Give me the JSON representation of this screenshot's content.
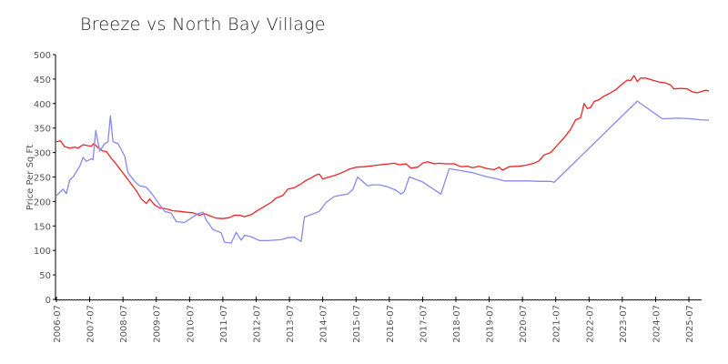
{
  "chart_data": {
    "type": "line",
    "title": "Breeze vs North Bay Village",
    "xlabel": "",
    "ylabel": "Price Per Sq Ft",
    "ylim": [
      0,
      500
    ],
    "yticks": [
      0,
      50,
      100,
      150,
      200,
      250,
      300,
      350,
      400,
      450,
      500
    ],
    "xticks": [
      "2006-07",
      "2007-07",
      "2008-07",
      "2009-07",
      "2010-07",
      "2011-07",
      "2012-07",
      "2013-07",
      "2014-07",
      "2015-07",
      "2016-07",
      "2017-07",
      "2018-07",
      "2019-07",
      "2020-07",
      "2021-07",
      "2022-07",
      "2023-07",
      "2024-07",
      "2025-07"
    ],
    "x_domain": [
      2006.5,
      2025.85
    ],
    "grid": false,
    "legend": null,
    "series": [
      {
        "name": "red-series",
        "color": "#ee2222",
        "points": [
          [
            2006.5,
            322
          ],
          [
            2006.62,
            324
          ],
          [
            2006.75,
            312
          ],
          [
            2006.9,
            309
          ],
          [
            2007.05,
            311
          ],
          [
            2007.15,
            309
          ],
          [
            2007.3,
            316
          ],
          [
            2007.45,
            314
          ],
          [
            2007.55,
            313
          ],
          [
            2007.62,
            318
          ],
          [
            2007.75,
            310
          ],
          [
            2007.9,
            303
          ],
          [
            2008.0,
            302
          ],
          [
            2008.15,
            288
          ],
          [
            2008.3,
            276
          ],
          [
            2008.5,
            258
          ],
          [
            2008.7,
            240
          ],
          [
            2008.9,
            222
          ],
          [
            2009.05,
            205
          ],
          [
            2009.2,
            196
          ],
          [
            2009.3,
            205
          ],
          [
            2009.45,
            193
          ],
          [
            2009.6,
            187
          ],
          [
            2009.8,
            185
          ],
          [
            2010.0,
            181
          ],
          [
            2010.2,
            180
          ],
          [
            2010.4,
            178
          ],
          [
            2010.6,
            177
          ],
          [
            2010.8,
            172
          ],
          [
            2010.95,
            175
          ],
          [
            2011.1,
            171
          ],
          [
            2011.3,
            166
          ],
          [
            2011.5,
            165
          ],
          [
            2011.7,
            167
          ],
          [
            2011.85,
            172
          ],
          [
            2012.0,
            172
          ],
          [
            2012.15,
            169
          ],
          [
            2012.35,
            173
          ],
          [
            2012.55,
            182
          ],
          [
            2012.75,
            190
          ],
          [
            2012.95,
            198
          ],
          [
            2013.1,
            207
          ],
          [
            2013.3,
            212
          ],
          [
            2013.45,
            225
          ],
          [
            2013.65,
            228
          ],
          [
            2013.85,
            236
          ],
          [
            2014.0,
            243
          ],
          [
            2014.15,
            248
          ],
          [
            2014.3,
            254
          ],
          [
            2014.4,
            256
          ],
          [
            2014.5,
            246
          ],
          [
            2014.65,
            249
          ],
          [
            2014.85,
            253
          ],
          [
            2015.05,
            258
          ],
          [
            2015.3,
            266
          ],
          [
            2015.5,
            270
          ],
          [
            2015.75,
            271
          ],
          [
            2016.0,
            273
          ],
          [
            2016.25,
            275
          ],
          [
            2016.5,
            277
          ],
          [
            2016.65,
            278
          ],
          [
            2016.8,
            275
          ],
          [
            2017.0,
            277
          ],
          [
            2017.15,
            268
          ],
          [
            2017.35,
            270
          ],
          [
            2017.5,
            278
          ],
          [
            2017.65,
            281
          ],
          [
            2017.85,
            277
          ],
          [
            2018.0,
            278
          ],
          [
            2018.2,
            277
          ],
          [
            2018.45,
            277
          ],
          [
            2018.65,
            271
          ],
          [
            2018.85,
            272
          ],
          [
            2019.0,
            269
          ],
          [
            2019.2,
            272
          ],
          [
            2019.45,
            267
          ],
          [
            2019.65,
            265
          ],
          [
            2019.8,
            270
          ],
          [
            2019.9,
            264
          ],
          [
            2020.1,
            271
          ],
          [
            2020.4,
            272
          ],
          [
            2020.6,
            274
          ],
          [
            2020.85,
            278
          ],
          [
            2021.0,
            283
          ],
          [
            2021.15,
            295
          ],
          [
            2021.35,
            300
          ],
          [
            2021.55,
            315
          ],
          [
            2021.75,
            330
          ],
          [
            2021.95,
            348
          ],
          [
            2022.1,
            367
          ],
          [
            2022.25,
            371
          ],
          [
            2022.35,
            400
          ],
          [
            2022.45,
            390
          ],
          [
            2022.55,
            392
          ],
          [
            2022.65,
            404
          ],
          [
            2022.8,
            408
          ],
          [
            2022.95,
            415
          ],
          [
            2023.1,
            420
          ],
          [
            2023.3,
            428
          ],
          [
            2023.5,
            440
          ],
          [
            2023.65,
            448
          ],
          [
            2023.75,
            447
          ],
          [
            2023.85,
            457
          ],
          [
            2023.95,
            445
          ],
          [
            2024.05,
            452
          ],
          [
            2024.2,
            452
          ],
          [
            2024.4,
            448
          ],
          [
            2024.6,
            444
          ],
          [
            2024.8,
            442
          ],
          [
            2024.95,
            438
          ],
          [
            2025.05,
            430
          ],
          [
            2025.25,
            431
          ],
          [
            2025.45,
            430
          ],
          [
            2025.6,
            424
          ],
          [
            2025.75,
            422
          ],
          [
            2025.85,
            424
          ],
          [
            2026.0,
            427
          ],
          [
            2026.1,
            426
          ]
        ]
      },
      {
        "name": "blue-series",
        "color": "#8888ee",
        "points": [
          [
            2006.5,
            212
          ],
          [
            2006.7,
            225
          ],
          [
            2006.8,
            216
          ],
          [
            2006.9,
            244
          ],
          [
            2007.0,
            250
          ],
          [
            2007.2,
            272
          ],
          [
            2007.3,
            290
          ],
          [
            2007.4,
            282
          ],
          [
            2007.55,
            287
          ],
          [
            2007.6,
            285
          ],
          [
            2007.68,
            345
          ],
          [
            2007.8,
            303
          ],
          [
            2007.95,
            318
          ],
          [
            2008.05,
            322
          ],
          [
            2008.12,
            375
          ],
          [
            2008.2,
            322
          ],
          [
            2008.35,
            318
          ],
          [
            2008.45,
            306
          ],
          [
            2008.55,
            293
          ],
          [
            2008.65,
            259
          ],
          [
            2008.85,
            241
          ],
          [
            2009.0,
            232
          ],
          [
            2009.2,
            229
          ],
          [
            2009.4,
            213
          ],
          [
            2009.55,
            198
          ],
          [
            2009.75,
            180
          ],
          [
            2009.95,
            176
          ],
          [
            2010.1,
            159
          ],
          [
            2010.35,
            157
          ],
          [
            2010.55,
            166
          ],
          [
            2010.75,
            175
          ],
          [
            2010.9,
            178
          ],
          [
            2011.0,
            162
          ],
          [
            2011.2,
            143
          ],
          [
            2011.45,
            136
          ],
          [
            2011.55,
            117
          ],
          [
            2011.75,
            115
          ],
          [
            2011.9,
            137
          ],
          [
            2012.05,
            121
          ],
          [
            2012.15,
            131
          ],
          [
            2012.35,
            128
          ],
          [
            2012.6,
            120
          ],
          [
            2012.85,
            120
          ],
          [
            2013.05,
            121
          ],
          [
            2013.25,
            122
          ],
          [
            2013.45,
            126
          ],
          [
            2013.65,
            127
          ],
          [
            2013.85,
            118
          ],
          [
            2013.95,
            168
          ],
          [
            2014.15,
            173
          ],
          [
            2014.4,
            180
          ],
          [
            2014.6,
            198
          ],
          [
            2014.85,
            210
          ],
          [
            2015.05,
            213
          ],
          [
            2015.25,
            215
          ],
          [
            2015.4,
            224
          ],
          [
            2015.55,
            250
          ],
          [
            2015.85,
            232
          ],
          [
            2016.0,
            234
          ],
          [
            2016.2,
            234
          ],
          [
            2016.45,
            230
          ],
          [
            2016.7,
            223
          ],
          [
            2016.85,
            215
          ],
          [
            2016.95,
            220
          ],
          [
            2017.1,
            250
          ],
          [
            2017.5,
            240
          ],
          [
            2018.05,
            215
          ],
          [
            2018.3,
            267
          ],
          [
            2018.65,
            263
          ],
          [
            2019.0,
            259
          ],
          [
            2019.4,
            251
          ],
          [
            2019.75,
            246
          ],
          [
            2019.95,
            242
          ],
          [
            2020.3,
            242
          ],
          [
            2020.7,
            242
          ],
          [
            2021.0,
            241
          ],
          [
            2021.35,
            241
          ],
          [
            2021.45,
            239
          ],
          [
            2023.95,
            405
          ],
          [
            2024.7,
            369
          ],
          [
            2025.2,
            370
          ],
          [
            2025.55,
            369
          ],
          [
            2025.85,
            367
          ],
          [
            2026.1,
            366
          ]
        ]
      }
    ]
  }
}
